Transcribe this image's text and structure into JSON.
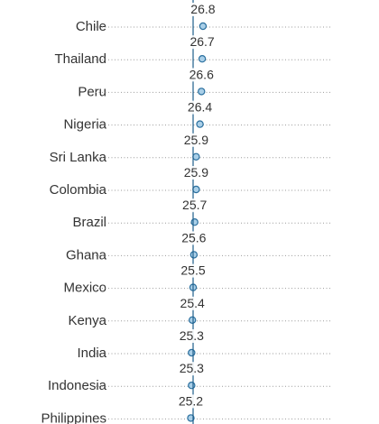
{
  "chart_data": {
    "type": "scatter",
    "title": "",
    "xlabel": "",
    "ylabel": "",
    "grid": false,
    "colors": {
      "point_fill": "#a9cfe8",
      "point_stroke": "#2a6f9e",
      "reference_line": "#1f5f8b",
      "dotted_line": "#9a9a9a",
      "label_text": "#333333"
    },
    "reference_value": 25.5,
    "categories": [
      "Chile",
      "Thailand",
      "Peru",
      "Nigeria",
      "Sri Lanka",
      "Colombia",
      "Brazil",
      "Ghana",
      "Mexico",
      "Kenya",
      "India",
      "Indonesia",
      "Philippines"
    ],
    "values": [
      26.8,
      26.7,
      26.6,
      26.4,
      25.9,
      25.9,
      25.7,
      25.6,
      25.5,
      25.4,
      25.3,
      25.3,
      25.2
    ],
    "value_labels": [
      "26.8",
      "26.7",
      "26.6",
      "26.4",
      "25.9",
      "25.9",
      "25.7",
      "25.6",
      "25.5",
      "25.4",
      "25.3",
      "25.3",
      "25.2"
    ]
  }
}
